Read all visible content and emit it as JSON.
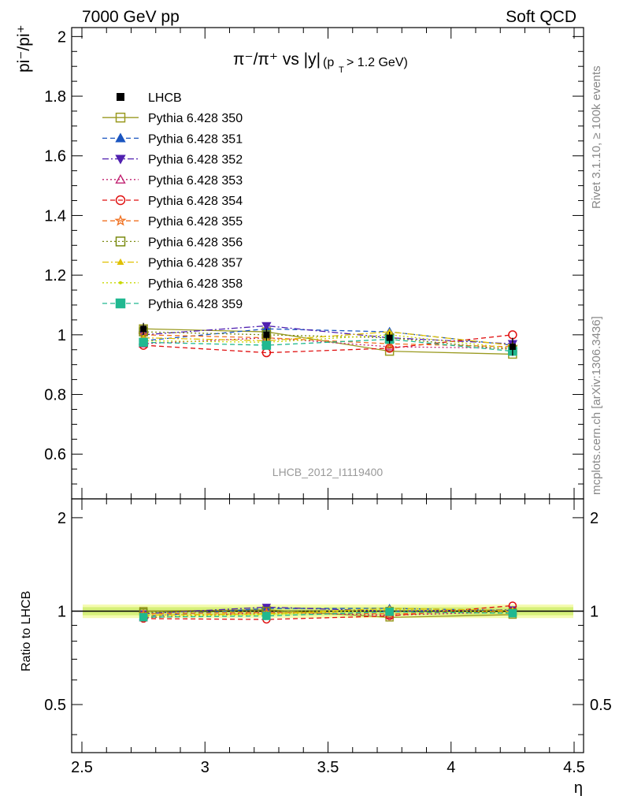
{
  "header": {
    "left": "7000 GeV pp",
    "right": "Soft QCD"
  },
  "side_labels": {
    "rivet": "Rivet 3.1.10, ≥ 100k events",
    "mcplots": "mcplots.cern.ch [arXiv:1306.3436]"
  },
  "chart_data": {
    "type": "line",
    "title_main": "π⁻/π⁺ vs |y|",
    "title_sub": "(p",
    "title_sub_t": "T",
    "title_sub_cut": " > 1.2 GeV)",
    "ylabel": "pi⁻/pi⁺",
    "xlabel": "η",
    "ratio_ylabel": "Ratio to LHCB",
    "watermark": "LHCB_2012_I1119400",
    "xlim": [
      2.5,
      4.5
    ],
    "ylim": [
      0.45,
      2.03
    ],
    "ratio_ylim": [
      0.35,
      2.3
    ],
    "x_ticks": [
      "2.5",
      "3",
      "3.5",
      "4",
      "4.5"
    ],
    "y_ticks": [
      "0.6",
      "0.8",
      "1",
      "1.2",
      "1.4",
      "1.6",
      "1.8",
      "2"
    ],
    "ratio_y_ticks": [
      "0.5",
      "1",
      "2"
    ],
    "x": [
      2.75,
      3.25,
      3.75,
      4.25
    ],
    "data": {
      "name": "LHCB",
      "values": [
        1.02,
        1.0,
        0.99,
        0.96
      ],
      "errors": [
        0.02,
        0.02,
        0.02,
        0.03
      ]
    },
    "series": [
      {
        "name": "Pythia 6.428 350",
        "values": [
          1.02,
          1.01,
          0.945,
          0.935
        ],
        "color": "#9a9a20",
        "marker": "square-open",
        "dash": "solid"
      },
      {
        "name": "Pythia 6.428 351",
        "values": [
          0.98,
          1.02,
          1.01,
          0.965
        ],
        "color": "#1a55c0",
        "marker": "triangle-up",
        "dash": "dashed"
      },
      {
        "name": "Pythia 6.428 352",
        "values": [
          1.0,
          1.03,
          0.99,
          0.97
        ],
        "color": "#5020b0",
        "marker": "triangle-down",
        "dash": "dashdot"
      },
      {
        "name": "Pythia 6.428 353",
        "values": [
          0.97,
          0.99,
          0.96,
          0.955
        ],
        "color": "#c02070",
        "marker": "triangle-up-open",
        "dash": "dotted"
      },
      {
        "name": "Pythia 6.428 354",
        "values": [
          0.965,
          0.94,
          0.955,
          1.0
        ],
        "color": "#e01010",
        "marker": "circle-open",
        "dash": "dashed"
      },
      {
        "name": "Pythia 6.428 355",
        "values": [
          1.0,
          0.99,
          0.97,
          0.96
        ],
        "color": "#f07020",
        "marker": "star-open",
        "dash": "dashed"
      },
      {
        "name": "Pythia 6.428 356",
        "values": [
          1.01,
          1.0,
          0.99,
          0.95
        ],
        "color": "#7a8a10",
        "marker": "square-open",
        "dash": "dotted"
      },
      {
        "name": "Pythia 6.428 357",
        "values": [
          0.99,
          0.98,
          1.01,
          0.965
        ],
        "color": "#e0c000",
        "marker": "triangle-small",
        "dash": "dashdot"
      },
      {
        "name": "Pythia 6.428 358",
        "values": [
          0.98,
          0.975,
          1.0,
          0.955
        ],
        "color": "#c8d800",
        "marker": "dot",
        "dash": "dotted"
      },
      {
        "name": "Pythia 6.428 359",
        "values": [
          0.975,
          0.965,
          0.985,
          0.945
        ],
        "color": "#20b890",
        "marker": "square-filled",
        "dash": "dashed"
      }
    ]
  }
}
